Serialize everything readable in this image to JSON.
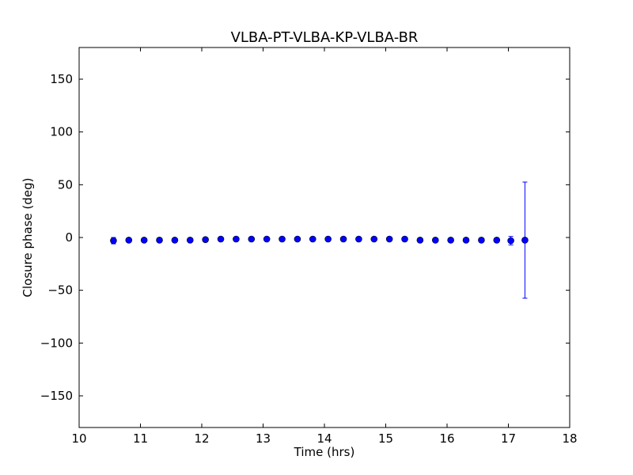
{
  "chart_data": {
    "type": "scatter",
    "title": "VLBA-PT-VLBA-KP-VLBA-BR",
    "xlabel": "Time (hrs)",
    "ylabel": "Closure phase (deg)",
    "xlim": [
      10,
      18
    ],
    "ylim": [
      -180,
      180
    ],
    "xticks": [
      10,
      11,
      12,
      13,
      14,
      15,
      16,
      17,
      18
    ],
    "xtick_labels": [
      "10",
      "11",
      "12",
      "13",
      "14",
      "15",
      "16",
      "17",
      "18"
    ],
    "yticks": [
      -150,
      -100,
      -50,
      0,
      50,
      100,
      150
    ],
    "ytick_labels": [
      "−150",
      "−100",
      "−50",
      "0",
      "50",
      "100",
      "150"
    ],
    "grid": false,
    "marker_color": "#0000ff",
    "series": [
      {
        "x": [
          10.56,
          10.81,
          11.06,
          11.31,
          11.56,
          11.81,
          12.06,
          12.31,
          12.56,
          12.81,
          13.06,
          13.31,
          13.56,
          13.81,
          14.06,
          14.31,
          14.56,
          14.81,
          15.06,
          15.31,
          15.56,
          15.81,
          16.06,
          16.31,
          16.56,
          16.81,
          17.04,
          17.27
        ],
        "y": [
          -3,
          -2.5,
          -2.5,
          -2.5,
          -2.5,
          -2.5,
          -2,
          -1.5,
          -1.5,
          -1.5,
          -1.5,
          -1.5,
          -1.5,
          -1.5,
          -1.5,
          -1.5,
          -1.5,
          -1.5,
          -1.5,
          -1.5,
          -2.5,
          -2.5,
          -2.5,
          -2.5,
          -2.5,
          -2.5,
          -3,
          -2.5
        ],
        "yerr": [
          3,
          1.5,
          1.5,
          1.5,
          1.5,
          1.5,
          1.5,
          1.5,
          1.5,
          1.5,
          1.5,
          1.5,
          1.5,
          1.5,
          1.5,
          1.5,
          1.5,
          1.5,
          1.5,
          1.5,
          1.5,
          1.5,
          1.5,
          1.5,
          1.5,
          2,
          4,
          55
        ]
      }
    ]
  }
}
